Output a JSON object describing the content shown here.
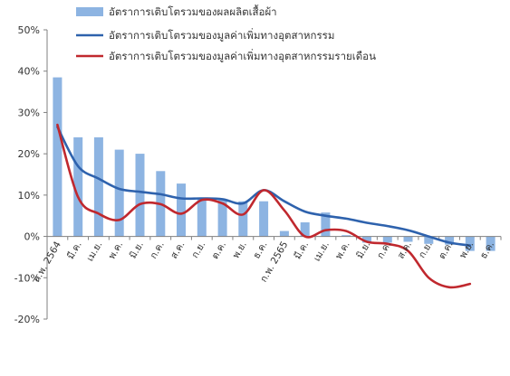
{
  "chart_data": {
    "type": "bar",
    "categories": [
      "ก.พ. 2564",
      "มี.ค.",
      "เม.ย.",
      "พ.ค.",
      "มิ.ย.",
      "ก.ค.",
      "ส.ค.",
      "ก.ย.",
      "ต.ค.",
      "พ.ย.",
      "ธ.ค.",
      "ก.พ. 2565",
      "มี.ค.",
      "เม.ย.",
      "พ.ค.",
      "มิ.ย.",
      "ก.ค.",
      "ส.ค.",
      "ก.ย.",
      "ต.ค.",
      "พ.ย.",
      "ธ.ค."
    ],
    "x_tick_labels": [
      "ก.พ. 2564",
      "มี.ค.",
      "เม.ย.",
      "พ.ค.",
      "มิ.ย.",
      "ก.ค.",
      "ส.ค.",
      "ก.ย.",
      "ต.ค.",
      "พ.ย.",
      "ธ.ค.",
      "ก.พ. 2565",
      "มี.ค.",
      "เม.ย.",
      "พ.ค.",
      "มิ.ย.",
      "ก.ค.",
      "ส.ค.",
      "ก.ย.",
      "ต.ค.",
      "พ.ย.",
      "ธ.ค."
    ],
    "y_tick_labels": [
      "50%",
      "40%",
      "30%",
      "20%",
      "10%",
      "0%",
      "-10%",
      "-20%"
    ],
    "y_ticks": [
      50,
      40,
      30,
      20,
      10,
      0,
      -10,
      -20
    ],
    "ylim": [
      -20,
      50
    ],
    "y_unit": "%",
    "grid": false,
    "legend_position": "top",
    "series": [
      {
        "name": "อัตราการเติบโตรวมของผลผลิตเสื้อผ้า",
        "kind": "bar",
        "color": "#8db4e2",
        "values": [
          38.5,
          24,
          24,
          21,
          20,
          15.8,
          12.8,
          9,
          8.8,
          8.5,
          8.5,
          1.3,
          3.4,
          5.8,
          0.3,
          -1.5,
          -1.5,
          -1.3,
          -1.8,
          -2,
          -3.5,
          -3.5
        ]
      },
      {
        "name": "อัตราการเติบโตรวมของมูลค่าเพิ่มทางอุตสาหกรรม",
        "kind": "line",
        "color": "#2e62ad",
        "values": [
          26.5,
          17,
          14,
          11.5,
          10.8,
          10.2,
          9.2,
          9.2,
          9,
          8,
          11.2,
          8.5,
          6,
          5,
          4.3,
          3.3,
          2.5,
          1.5,
          0,
          -1.5,
          -2.2,
          null
        ]
      },
      {
        "name": "อัตราการเติบโตรวมของมูลค่าเพิ่มทางอุตสาหกรรมรายเดือน",
        "kind": "line",
        "color": "#c0282e",
        "values": [
          27,
          9.5,
          5.5,
          4,
          7.8,
          7.8,
          5.5,
          8.8,
          8,
          5.3,
          11.2,
          6.3,
          0,
          1.5,
          1.3,
          -1.3,
          -1.8,
          -3.5,
          -10,
          -12.3,
          -11.5,
          null
        ]
      }
    ]
  }
}
